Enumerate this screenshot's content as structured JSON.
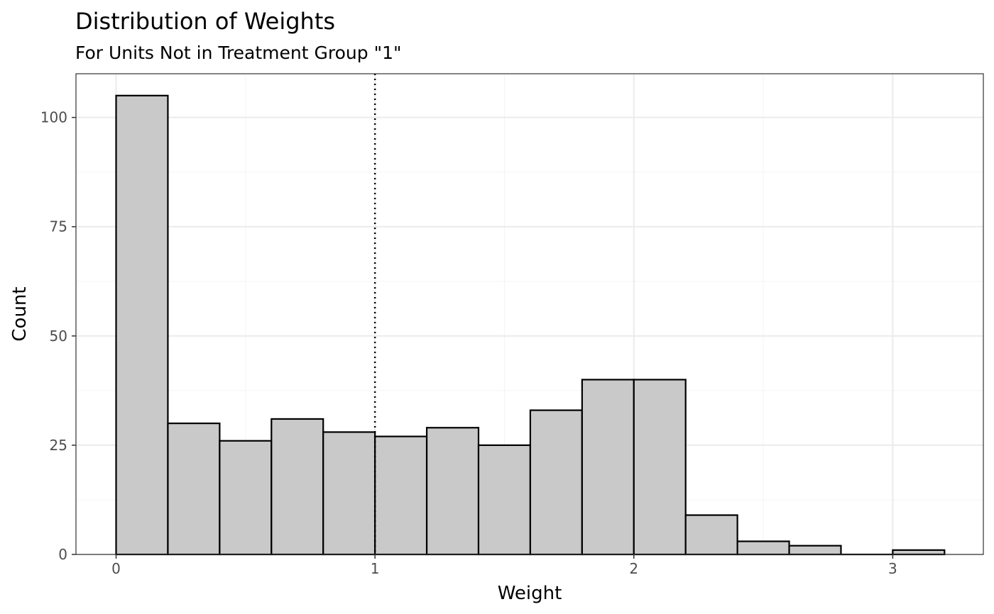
{
  "chart_data": {
    "type": "bar",
    "title": "Distribution of Weights",
    "subtitle": "For Units Not in Treatment Group \"1\"",
    "xlabel": "Weight",
    "ylabel": "Count",
    "xlim": [
      -0.155,
      3.35
    ],
    "ylim": [
      0,
      110
    ],
    "x_ticks": [
      0,
      1,
      2,
      3
    ],
    "y_ticks": [
      0,
      25,
      50,
      75,
      100
    ],
    "bin_width": 0.2,
    "bins": [
      {
        "start": 0.0,
        "end": 0.2,
        "count": 105
      },
      {
        "start": 0.2,
        "end": 0.4,
        "count": 30
      },
      {
        "start": 0.4,
        "end": 0.6,
        "count": 26
      },
      {
        "start": 0.6,
        "end": 0.8,
        "count": 31
      },
      {
        "start": 0.8,
        "end": 1.0,
        "count": 28
      },
      {
        "start": 1.0,
        "end": 1.2,
        "count": 27
      },
      {
        "start": 1.2,
        "end": 1.4,
        "count": 29
      },
      {
        "start": 1.4,
        "end": 1.6,
        "count": 25
      },
      {
        "start": 1.6,
        "end": 1.8,
        "count": 33
      },
      {
        "start": 1.8,
        "end": 2.0,
        "count": 40
      },
      {
        "start": 2.0,
        "end": 2.2,
        "count": 40
      },
      {
        "start": 2.2,
        "end": 2.4,
        "count": 9
      },
      {
        "start": 2.4,
        "end": 2.6,
        "count": 3
      },
      {
        "start": 2.6,
        "end": 2.8,
        "count": 2
      },
      {
        "start": 2.8,
        "end": 3.0,
        "count": 0
      },
      {
        "start": 3.0,
        "end": 3.2,
        "count": 1
      }
    ],
    "reference_line_x": 1,
    "grid": true,
    "legend": "none",
    "colors": {
      "bar_fill": "#c9c9c9",
      "bar_border": "#000000",
      "panel_border": "#333333",
      "grid": "#ebebeb"
    }
  }
}
